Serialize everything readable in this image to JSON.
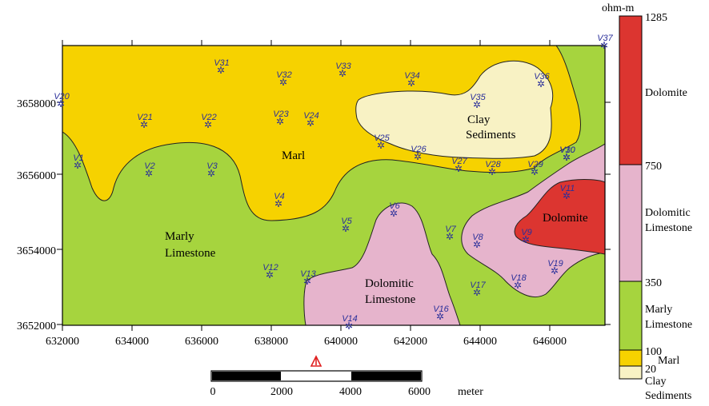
{
  "map": {
    "x_ticks": [
      "632000",
      "634000",
      "636000",
      "638000",
      "640000",
      "642000",
      "644000",
      "646000"
    ],
    "y_ticks": [
      "3658000",
      "3656000",
      "3654000",
      "3652000"
    ],
    "zones": {
      "marl": "Marl",
      "clay_line1": "Clay",
      "clay_line2": "Sediments",
      "marly_line1": "Marly",
      "marly_line2": "Limestone",
      "dolomite": "Dolomite",
      "dol_lime_line1": "Dolomitic",
      "dol_lime_line2": "Limestone"
    },
    "stations": [
      "V1",
      "V2",
      "V3",
      "V4",
      "V5",
      "V6",
      "V7",
      "V8",
      "V9",
      "V10",
      "V11",
      "V12",
      "V13",
      "V14",
      "V16",
      "V17",
      "V18",
      "V19",
      "V20",
      "V21",
      "V22",
      "V23",
      "V24",
      "V25",
      "V26",
      "V27",
      "V28",
      "V29",
      "V30",
      "V31",
      "V32",
      "V33",
      "V34",
      "V35",
      "V36",
      "V37"
    ]
  },
  "scale_bar": {
    "labels": [
      "0",
      "2000",
      "4000",
      "6000"
    ],
    "unit": "meter"
  },
  "legend": {
    "unit": "ohm-m",
    "values": [
      "1285",
      "750",
      "350",
      "100",
      "20"
    ],
    "classes": {
      "dolomite": "Dolomite",
      "dol_lime_line1": "Dolomitic",
      "dol_lime_line2": "Limestone",
      "marly_line1": "Marly",
      "marly_line2": "Limestone",
      "marl": "Marl",
      "clay_line1": "Clay",
      "clay_line2": "Sediments"
    }
  },
  "colors": {
    "dolomite": "#dc3530",
    "dolomitic_limestone": "#e6b4cc",
    "marly_limestone": "#a6d43e",
    "marl": "#f6d200",
    "clay_sediments": "#f8f2c4",
    "station": "#2a2f9a",
    "north_arrow": "#e02020"
  }
}
